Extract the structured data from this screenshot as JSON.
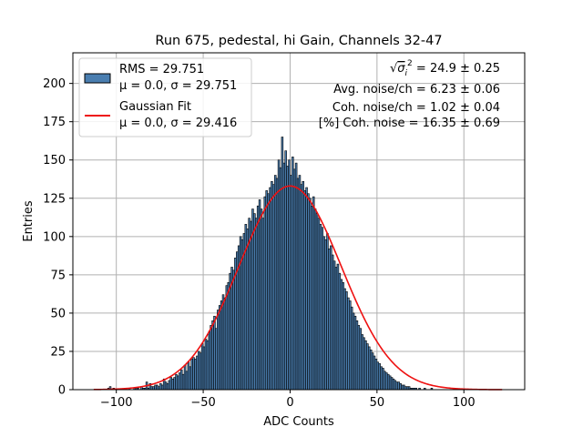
{
  "chart_data": {
    "type": "bar",
    "title": "Run 675, pedestal, hi Gain, Channels 32-47",
    "xlabel": "ADC Counts",
    "ylabel": "Entries",
    "xlim": [
      -125,
      135
    ],
    "ylim": [
      0,
      220
    ],
    "xticks": [
      -100,
      -50,
      0,
      50,
      100
    ],
    "yticks": [
      0,
      25,
      50,
      75,
      100,
      125,
      150,
      175,
      200
    ],
    "xtick_labels": [
      "−100",
      "−50",
      "0",
      "50",
      "100"
    ],
    "ytick_labels": [
      "0",
      "25",
      "50",
      "75",
      "100",
      "125",
      "150",
      "175",
      "200"
    ],
    "grid": true,
    "legend_position": "top-left",
    "colors": {
      "bar": "#4a7eb0",
      "bar_edge": "#000000",
      "fit": "#ee1111",
      "grid": "#b0b0b0"
    },
    "legend": [
      {
        "label_line1": "RMS = 29.751",
        "label_line2": "μ = 0.0, σ = 29.751",
        "marker": "patch"
      },
      {
        "label_line1": "Gaussian Fit",
        "label_line2": "μ = 0.0, σ = 29.416",
        "marker": "line"
      }
    ],
    "annotations": {
      "sqrt_prefix": "√",
      "sigma_symbol": "σ",
      "sigma_sup": "2",
      "sigma_sub": "i",
      "line1_value": " = 24.9 ± 0.25",
      "line2": "Avg. noise/ch = 6.23 ± 0.06",
      "line3": "Coh. noise/ch = 1.02 ± 0.04",
      "line4": "[%] Coh. noise = 16.35 ± 0.69"
    },
    "histogram": {
      "bin_width": 1,
      "x_start": -113,
      "counts": [
        0,
        0,
        0,
        0,
        0,
        0,
        0,
        0,
        1,
        2,
        0,
        1,
        0,
        0,
        0,
        0,
        0,
        0,
        1,
        0,
        1,
        0,
        0,
        1,
        1,
        1,
        0,
        2,
        1,
        1,
        5,
        1,
        4,
        2,
        2,
        3,
        3,
        2,
        4,
        3,
        7,
        5,
        4,
        6,
        8,
        7,
        8,
        10,
        9,
        11,
        13,
        10,
        16,
        12,
        18,
        15,
        20,
        21,
        20,
        22,
        25,
        24,
        30,
        28,
        33,
        32,
        38,
        42,
        45,
        48,
        40,
        52,
        55,
        58,
        62,
        60,
        68,
        70,
        76,
        80,
        78,
        86,
        90,
        94,
        100,
        98,
        102,
        108,
        105,
        112,
        110,
        118,
        115,
        112,
        120,
        124,
        118,
        112,
        126,
        130,
        128,
        132,
        136,
        134,
        140,
        138,
        150,
        145,
        165,
        148,
        156,
        146,
        150,
        140,
        152,
        144,
        148,
        138,
        140,
        134,
        136,
        130,
        132,
        128,
        125,
        120,
        126,
        118,
        115,
        112,
        108,
        106,
        100,
        98,
        102,
        92,
        94,
        88,
        84,
        80,
        82,
        76,
        72,
        70,
        66,
        64,
        60,
        58,
        54,
        50,
        48,
        45,
        42,
        40,
        36,
        34,
        32,
        30,
        28,
        26,
        24,
        22,
        20,
        18,
        17,
        15,
        14,
        12,
        11,
        10,
        9,
        8,
        7,
        6,
        5,
        5,
        4,
        3,
        3,
        2,
        2,
        2,
        1,
        1,
        1,
        1,
        0,
        1,
        0,
        0,
        1,
        0,
        0,
        0,
        1,
        0,
        0,
        0,
        0,
        0,
        0,
        0,
        0,
        0,
        0,
        0,
        0,
        0,
        0,
        0,
        0,
        0,
        0,
        0,
        0,
        0
      ]
    },
    "fit": {
      "mu": 0.0,
      "sigma": 29.416,
      "amplitude": 133,
      "x_range": [
        -113,
        122
      ]
    }
  }
}
